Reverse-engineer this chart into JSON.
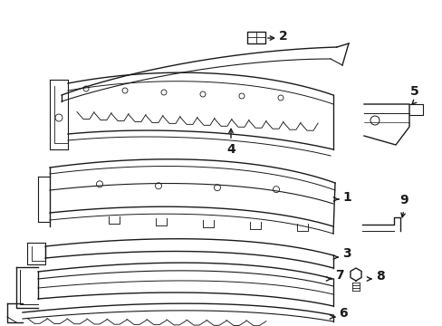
{
  "bg_color": "#ffffff",
  "line_color": "#1a1a1a",
  "lw": 1.0,
  "font_size": 10,
  "fig_w": 4.89,
  "fig_h": 3.6,
  "dpi": 100
}
